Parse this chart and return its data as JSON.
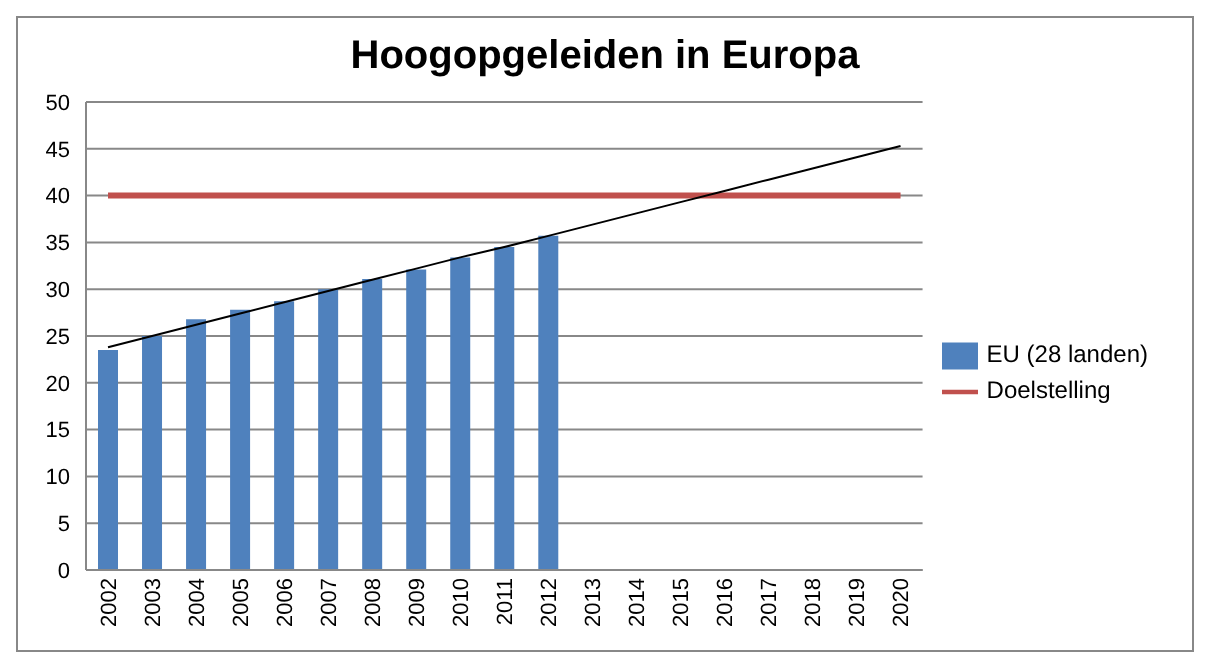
{
  "chart_data": {
    "type": "bar",
    "title": "Hoogopgeleiden in Europa",
    "categories": [
      "2002",
      "2003",
      "2004",
      "2005",
      "2006",
      "2007",
      "2008",
      "2009",
      "2010",
      "2011",
      "2012",
      "2013",
      "2014",
      "2015",
      "2016",
      "2017",
      "2018",
      "2019",
      "2020"
    ],
    "series": [
      {
        "name": "EU (28 landen)",
        "color": "#4f81bd",
        "values": [
          23.5,
          25.0,
          26.8,
          27.8,
          28.7,
          30.0,
          31.1,
          32.1,
          33.4,
          34.5,
          35.7,
          null,
          null,
          null,
          null,
          null,
          null,
          null,
          null
        ]
      },
      {
        "name": "Doelstelling",
        "type": "line",
        "color": "#c0504d",
        "values": [
          40,
          40,
          40,
          40,
          40,
          40,
          40,
          40,
          40,
          40,
          40,
          40,
          40,
          40,
          40,
          40,
          40,
          40,
          40
        ]
      },
      {
        "type": "line",
        "color": "#000000",
        "values": [
          23.8,
          25.0,
          26.2,
          27.4,
          28.6,
          29.8,
          31.0,
          32.2,
          33.4,
          34.5,
          35.7,
          36.9,
          38.1,
          39.3,
          40.5,
          41.7,
          42.9,
          44.1,
          45.3
        ]
      }
    ],
    "ylim": [
      0,
      50
    ],
    "yticks": [
      0,
      5,
      10,
      15,
      20,
      25,
      30,
      35,
      40,
      45,
      50
    ],
    "grid": "y",
    "legend": "right",
    "marker": "none"
  }
}
